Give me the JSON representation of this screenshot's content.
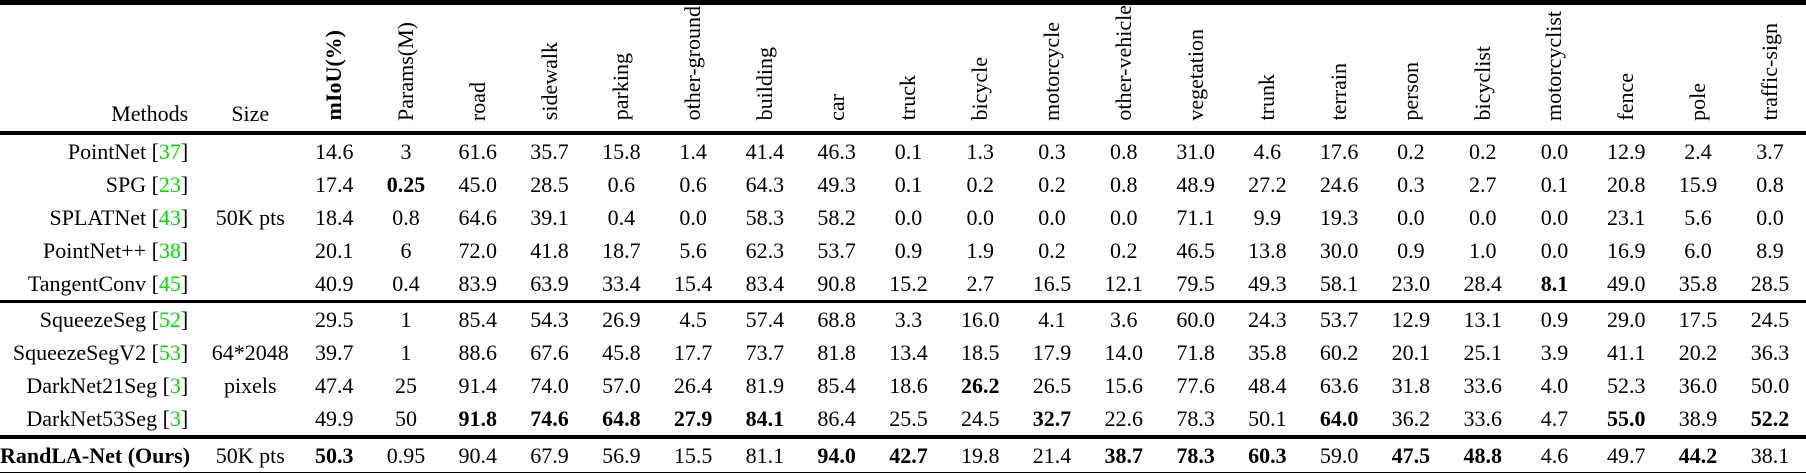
{
  "meta": {
    "citation_color": "#00e000",
    "text_color": "#000000",
    "background_color": "#ffffff"
  },
  "header": {
    "methods": "Methods",
    "size": "Size",
    "columns": [
      "mIoU(%)",
      "Params(M)",
      "road",
      "sidewalk",
      "parking",
      "other-ground",
      "building",
      "car",
      "truck",
      "bicycle",
      "motorcycle",
      "other-vehicle",
      "vegetation",
      "trunk",
      "terrain",
      "person",
      "bicyclist",
      "motorcyclist",
      "fence",
      "pole",
      "traffic-sign"
    ]
  },
  "groups": [
    {
      "rows": [
        {
          "method": "PointNet",
          "cite": "37",
          "size": "",
          "method_bold": false,
          "values": [
            "14.6",
            "3",
            "61.6",
            "35.7",
            "15.8",
            "1.4",
            "41.4",
            "46.3",
            "0.1",
            "1.3",
            "0.3",
            "0.8",
            "31.0",
            "4.6",
            "17.6",
            "0.2",
            "0.2",
            "0.0",
            "12.9",
            "2.4",
            "3.7"
          ],
          "bold": []
        },
        {
          "method": "SPG",
          "cite": "23",
          "size": "",
          "method_bold": false,
          "values": [
            "17.4",
            "0.25",
            "45.0",
            "28.5",
            "0.6",
            "0.6",
            "64.3",
            "49.3",
            "0.1",
            "0.2",
            "0.2",
            "0.8",
            "48.9",
            "27.2",
            "24.6",
            "0.3",
            "2.7",
            "0.1",
            "20.8",
            "15.9",
            "0.8"
          ],
          "bold": [
            1
          ]
        },
        {
          "method": "SPLATNet",
          "cite": "43",
          "size": "50K pts",
          "method_bold": false,
          "values": [
            "18.4",
            "0.8",
            "64.6",
            "39.1",
            "0.4",
            "0.0",
            "58.3",
            "58.2",
            "0.0",
            "0.0",
            "0.0",
            "0.0",
            "71.1",
            "9.9",
            "19.3",
            "0.0",
            "0.0",
            "0.0",
            "23.1",
            "5.6",
            "0.0"
          ],
          "bold": []
        },
        {
          "method": "PointNet++",
          "cite": "38",
          "size": "",
          "method_bold": false,
          "values": [
            "20.1",
            "6",
            "72.0",
            "41.8",
            "18.7",
            "5.6",
            "62.3",
            "53.7",
            "0.9",
            "1.9",
            "0.2",
            "0.2",
            "46.5",
            "13.8",
            "30.0",
            "0.9",
            "1.0",
            "0.0",
            "16.9",
            "6.0",
            "8.9"
          ],
          "bold": []
        },
        {
          "method": "TangentConv",
          "cite": "45",
          "size": "",
          "method_bold": false,
          "values": [
            "40.9",
            "0.4",
            "83.9",
            "63.9",
            "33.4",
            "15.4",
            "83.4",
            "90.8",
            "15.2",
            "2.7",
            "16.5",
            "12.1",
            "79.5",
            "49.3",
            "58.1",
            "23.0",
            "28.4",
            "8.1",
            "49.0",
            "35.8",
            "28.5"
          ],
          "bold": [
            17
          ]
        }
      ]
    },
    {
      "rows": [
        {
          "method": "SqueezeSeg",
          "cite": "52",
          "size": "",
          "method_bold": false,
          "values": [
            "29.5",
            "1",
            "85.4",
            "54.3",
            "26.9",
            "4.5",
            "57.4",
            "68.8",
            "3.3",
            "16.0",
            "4.1",
            "3.6",
            "60.0",
            "24.3",
            "53.7",
            "12.9",
            "13.1",
            "0.9",
            "29.0",
            "17.5",
            "24.5"
          ],
          "bold": []
        },
        {
          "method": "SqueezeSegV2",
          "cite": "53",
          "size": "64*2048",
          "method_bold": false,
          "values": [
            "39.7",
            "1",
            "88.6",
            "67.6",
            "45.8",
            "17.7",
            "73.7",
            "81.8",
            "13.4",
            "18.5",
            "17.9",
            "14.0",
            "71.8",
            "35.8",
            "60.2",
            "20.1",
            "25.1",
            "3.9",
            "41.1",
            "20.2",
            "36.3"
          ],
          "bold": []
        },
        {
          "method": "DarkNet21Seg",
          "cite": "3",
          "size": "pixels",
          "method_bold": false,
          "values": [
            "47.4",
            "25",
            "91.4",
            "74.0",
            "57.0",
            "26.4",
            "81.9",
            "85.4",
            "18.6",
            "26.2",
            "26.5",
            "15.6",
            "77.6",
            "48.4",
            "63.6",
            "31.8",
            "33.6",
            "4.0",
            "52.3",
            "36.0",
            "50.0"
          ],
          "bold": [
            9
          ]
        },
        {
          "method": "DarkNet53Seg",
          "cite": "3",
          "size": "",
          "method_bold": false,
          "values": [
            "49.9",
            "50",
            "91.8",
            "74.6",
            "64.8",
            "27.9",
            "84.1",
            "86.4",
            "25.5",
            "24.5",
            "32.7",
            "22.6",
            "78.3",
            "50.1",
            "64.0",
            "36.2",
            "33.6",
            "4.7",
            "55.0",
            "38.9",
            "52.2"
          ],
          "bold": [
            2,
            3,
            4,
            5,
            6,
            10,
            14,
            18,
            20
          ]
        }
      ]
    },
    {
      "rows": [
        {
          "method": "RandLA-Net (Ours)",
          "cite": "",
          "size": "50K pts",
          "method_bold": true,
          "values": [
            "50.3",
            "0.95",
            "90.4",
            "67.9",
            "56.9",
            "15.5",
            "81.1",
            "94.0",
            "42.7",
            "19.8",
            "21.4",
            "38.7",
            "78.3",
            "60.3",
            "59.0",
            "47.5",
            "48.8",
            "4.6",
            "49.7",
            "44.2",
            "38.1"
          ],
          "bold": [
            0,
            7,
            8,
            11,
            12,
            13,
            15,
            16,
            19
          ]
        }
      ]
    }
  ]
}
